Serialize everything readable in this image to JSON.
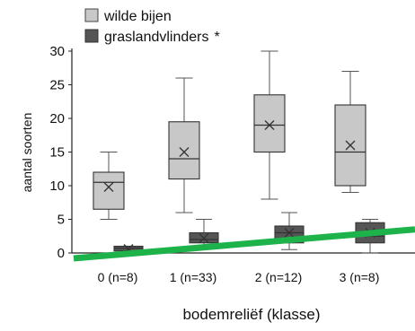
{
  "chart_data": {
    "type": "boxplot",
    "xlabel": "bodemreliëf (klasse)",
    "ylabel": "aantal soorten",
    "ylim": [
      0,
      30
    ],
    "yticks": [
      0,
      5,
      10,
      15,
      20,
      25,
      30
    ],
    "categories": [
      "0 (n=8)",
      "1 (n=33)",
      "2 (n=12)",
      "3 (n=8)"
    ],
    "legend_position": "top-left",
    "grid": false,
    "series": [
      {
        "name": "wilde bijen",
        "color": "#c8c8c8",
        "boxes": [
          {
            "min": 5,
            "q1": 6.5,
            "median": 10.5,
            "q3": 12,
            "max": 15,
            "mean": 9.8
          },
          {
            "min": 6,
            "q1": 11,
            "median": 14,
            "q3": 19.5,
            "max": 26,
            "mean": 15
          },
          {
            "min": 8,
            "q1": 15,
            "median": 19,
            "q3": 23.5,
            "max": 30,
            "mean": 19
          },
          {
            "min": 9,
            "q1": 10,
            "median": 15,
            "q3": 22,
            "max": 27,
            "mean": 16
          }
        ]
      },
      {
        "name": "graslandvlinders",
        "marker": "*",
        "color": "#555555",
        "boxes": [
          {
            "min": 0,
            "q1": 0.3,
            "median": 0.7,
            "q3": 1.0,
            "max": 1.0,
            "mean": 0.6
          },
          {
            "min": 1,
            "q1": 1.5,
            "median": 2,
            "q3": 3,
            "max": 5,
            "mean": 2.2
          },
          {
            "min": 0.5,
            "q1": 1.5,
            "median": 3,
            "q3": 4,
            "max": 6,
            "mean": 3
          },
          {
            "min": 0,
            "q1": 1.5,
            "median": 2.5,
            "q3": 4.5,
            "max": 5,
            "mean": 3
          }
        ]
      }
    ],
    "trend_line": {
      "color": "#1db34a",
      "y_start": -0.8,
      "y_end": 3.5
    }
  }
}
